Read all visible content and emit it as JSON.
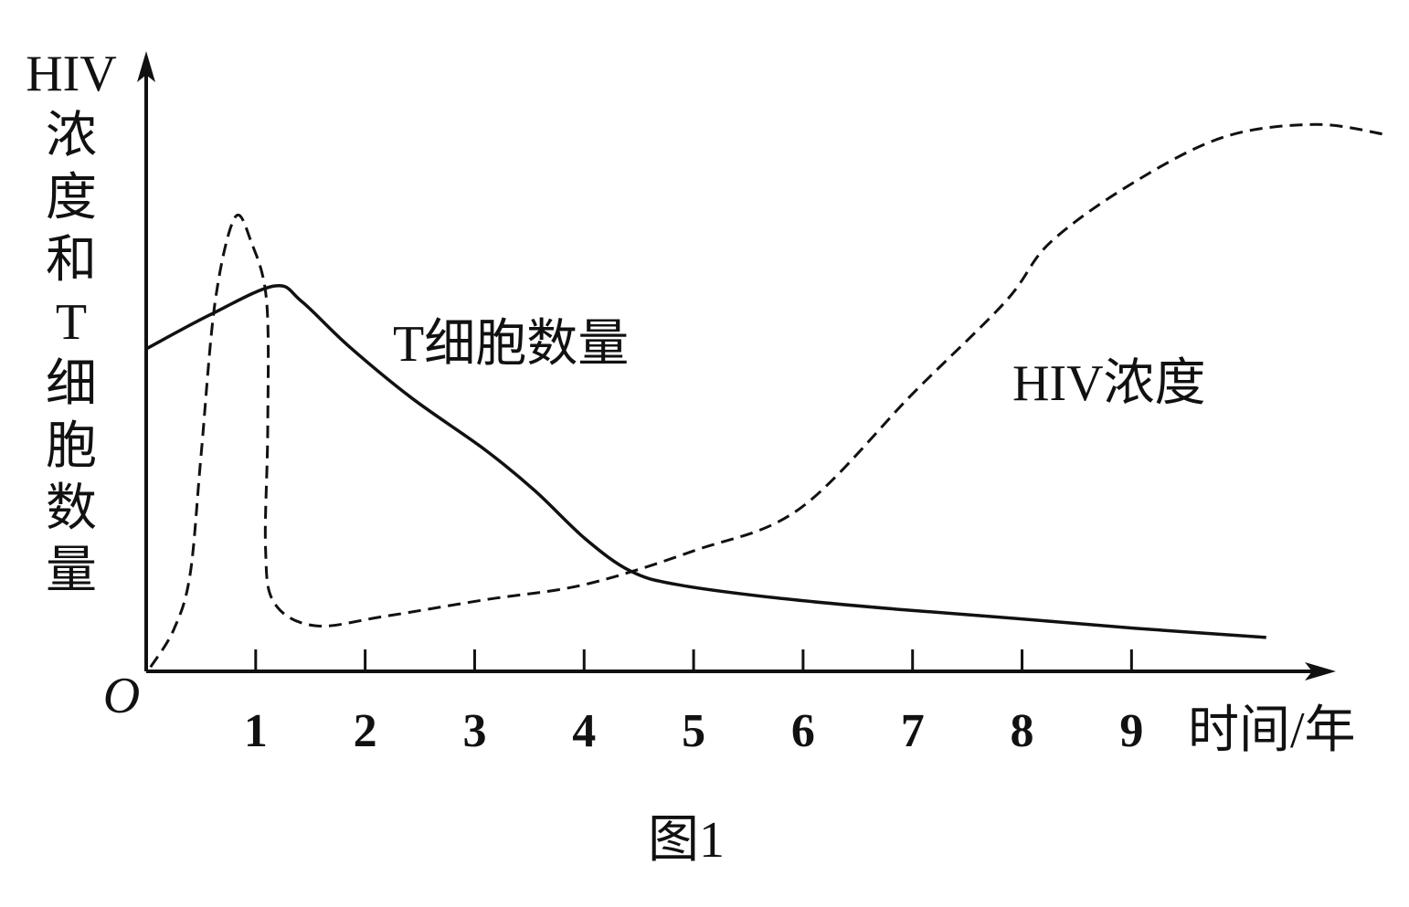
{
  "chart_data": {
    "type": "line",
    "caption": "图1",
    "ylabel": "HIV浓度和T细胞数量",
    "xlabel": "时间/年",
    "origin_label": "O",
    "xlim": [
      0,
      10.85
    ],
    "ylim": [
      0,
      10
    ],
    "xticks": [
      1,
      2,
      3,
      4,
      5,
      6,
      7,
      8,
      9
    ],
    "series": [
      {
        "name": "T细胞数量",
        "color": "#111111",
        "dash": false,
        "x": [
          0,
          0.58,
          1.17,
          1.42,
          1.84,
          2.42,
          3.09,
          3.55,
          4.01,
          4.42,
          4.84,
          5.76,
          6.84,
          7.93,
          9.02,
          10.23
        ],
        "values": [
          5.23,
          5.78,
          6.25,
          6.0,
          5.29,
          4.44,
          3.6,
          2.93,
          2.15,
          1.63,
          1.41,
          1.19,
          1.01,
          0.86,
          0.7,
          0.55
        ]
      },
      {
        "name": "HIV浓度",
        "color": "#111111",
        "dash": true,
        "x": [
          0.04,
          0.25,
          0.4,
          0.5,
          0.63,
          0.81,
          0.96,
          1.1,
          1.11,
          1.09,
          1.17,
          1.54,
          2.17,
          3.09,
          4.01,
          5.01,
          5.97,
          7.01,
          7.85,
          8.26,
          9.02,
          9.85,
          10.68,
          11.31
        ],
        "values": [
          0.07,
          0.67,
          1.56,
          3.48,
          6.0,
          7.36,
          6.96,
          6.0,
          3.93,
          2.0,
          1.11,
          0.74,
          0.89,
          1.16,
          1.41,
          1.96,
          2.64,
          4.52,
          6.0,
          6.96,
          7.93,
          8.67,
          8.87,
          8.71
        ]
      }
    ]
  }
}
